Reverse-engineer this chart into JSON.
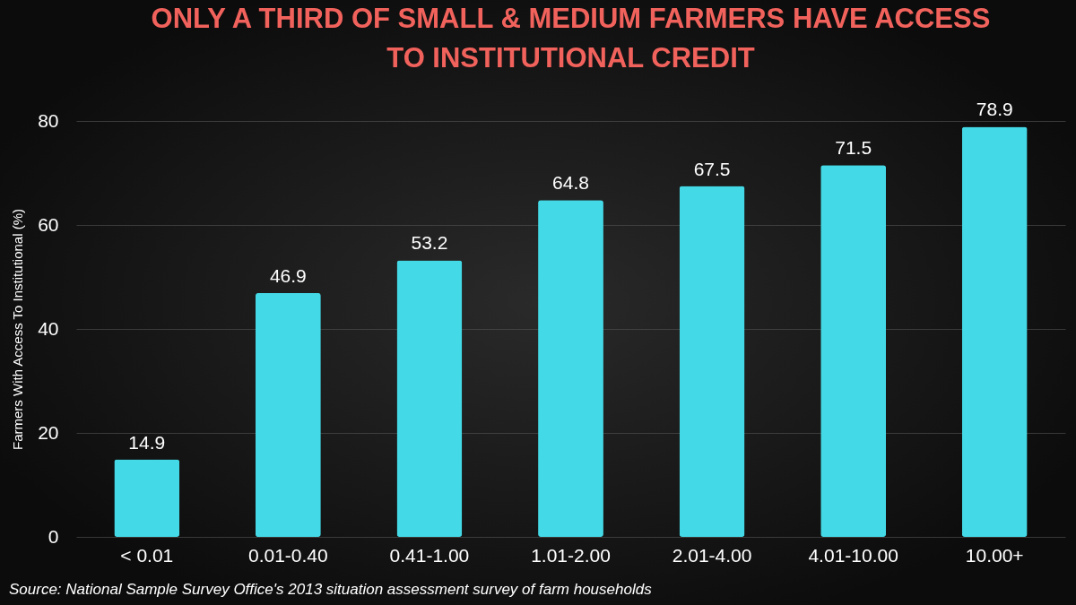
{
  "chart_data": {
    "type": "bar",
    "title": "ONLY A THIRD OF SMALL & MEDIUM FARMERS HAVE ACCESS TO INSTITUTIONAL CREDIT",
    "ylabel": "Farmers With Access To Institutional  (%)",
    "categories": [
      "< 0.01",
      "0.01-0.40",
      "0.41-1.00",
      "1.01-2.00",
      "2.01-4.00",
      "4.01-10.00",
      "10.00+"
    ],
    "values": [
      14.9,
      46.9,
      53.2,
      64.8,
      67.5,
      71.5,
      78.9
    ],
    "color": "#44d9e6",
    "ylim": [
      0,
      80
    ],
    "yticks": [
      0,
      20,
      40,
      60,
      80
    ],
    "grid": "y",
    "data_labels": true,
    "annotations": [
      "Source: National Sample Survey Office's 2013 situation assessment survey of farm households"
    ]
  }
}
